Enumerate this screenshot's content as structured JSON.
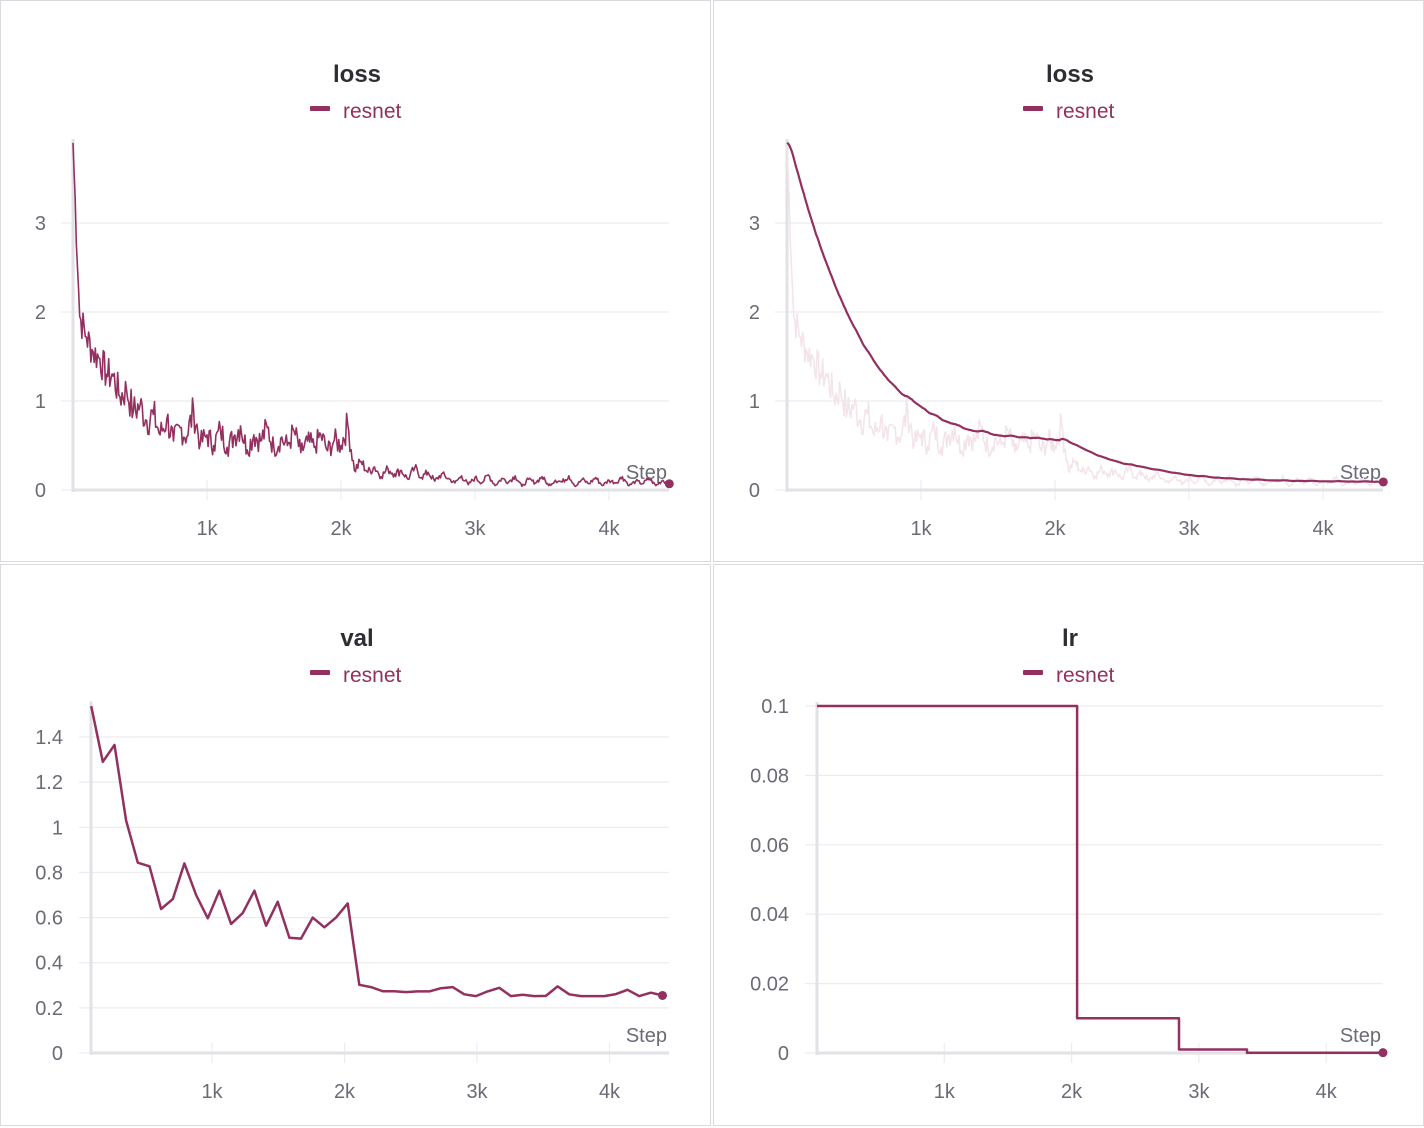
{
  "colors": {
    "series": "#93305f",
    "series_faint": "#f3e4ea"
  },
  "chart_data": [
    {
      "type": "line",
      "title": "loss",
      "legend": [
        {
          "name": "resnet",
          "color": "#93305f"
        }
      ],
      "xlabel": "Step",
      "xticks": [
        1000,
        2000,
        3000,
        4000
      ],
      "xtick_labels": [
        "1k",
        "2k",
        "3k",
        "4k"
      ],
      "yticks": [
        0,
        1,
        2,
        3
      ],
      "ytick_labels": [
        "0",
        "1",
        "2",
        "3"
      ],
      "xlim": [
        0,
        4450
      ],
      "ylim": [
        0,
        3.9
      ],
      "smoothing": false,
      "series": [
        {
          "name": "resnet",
          "x_start": 0,
          "x_step": 50,
          "values": [
            3.9,
            1.95,
            1.72,
            1.55,
            1.48,
            1.3,
            1.28,
            1.05,
            1.12,
            0.88,
            0.95,
            0.78,
            0.85,
            0.62,
            0.8,
            0.55,
            0.7,
            0.6,
            0.9,
            0.52,
            0.62,
            0.5,
            0.68,
            0.48,
            0.6,
            0.72,
            0.45,
            0.62,
            0.55,
            0.7,
            0.46,
            0.58,
            0.5,
            0.66,
            0.42,
            0.55,
            0.48,
            0.62,
            0.44,
            0.56,
            0.5,
            0.74,
            0.22,
            0.32,
            0.2,
            0.26,
            0.15,
            0.24,
            0.18,
            0.22,
            0.12,
            0.25,
            0.14,
            0.2,
            0.1,
            0.18,
            0.13,
            0.08,
            0.16,
            0.06,
            0.14,
            0.08,
            0.17,
            0.05,
            0.13,
            0.09,
            0.16,
            0.04,
            0.12,
            0.08,
            0.15,
            0.05,
            0.11,
            0.09,
            0.16,
            0.04,
            0.12,
            0.07,
            0.14,
            0.05,
            0.11,
            0.08,
            0.15,
            0.05,
            0.1,
            0.07,
            0.13,
            0.05,
            0.11,
            0.07
          ]
        }
      ]
    },
    {
      "type": "line",
      "title": "loss",
      "legend": [
        {
          "name": "resnet",
          "color": "#93305f"
        }
      ],
      "xlabel": "Step",
      "xticks": [
        1000,
        2000,
        3000,
        4000
      ],
      "xtick_labels": [
        "1k",
        "2k",
        "3k",
        "4k"
      ],
      "yticks": [
        0,
        1,
        2,
        3
      ],
      "ytick_labels": [
        "0",
        "1",
        "2",
        "3"
      ],
      "xlim": [
        0,
        4450
      ],
      "ylim": [
        0,
        3.9
      ],
      "smoothing": true,
      "series_ref": 0
    },
    {
      "type": "line",
      "title": "val",
      "legend": [
        {
          "name": "resnet",
          "color": "#93305f"
        }
      ],
      "xlabel": "Step",
      "xticks": [
        1000,
        2000,
        3000,
        4000
      ],
      "xtick_labels": [
        "1k",
        "2k",
        "3k",
        "4k"
      ],
      "yticks": [
        0,
        0.2,
        0.4,
        0.6,
        0.8,
        1,
        1.2,
        1.4
      ],
      "ytick_labels": [
        "0",
        "0.2",
        "0.4",
        "0.6",
        "0.8",
        "1",
        "1.2",
        "1.4"
      ],
      "xlim": [
        0,
        4450
      ],
      "ylim": [
        0,
        1.54
      ],
      "series": [
        {
          "name": "resnet",
          "x_start": 88,
          "x_step": 88,
          "values": [
            1.537,
            1.29,
            1.365,
            1.03,
            0.843,
            0.827,
            0.638,
            0.682,
            0.84,
            0.7,
            0.597,
            0.719,
            0.572,
            0.62,
            0.719,
            0.564,
            0.67,
            0.511,
            0.507,
            0.6,
            0.557,
            0.6,
            0.663,
            0.302,
            0.292,
            0.274,
            0.274,
            0.27,
            0.273,
            0.273,
            0.287,
            0.292,
            0.26,
            0.252,
            0.273,
            0.289,
            0.252,
            0.258,
            0.252,
            0.253,
            0.295,
            0.26,
            0.252,
            0.252,
            0.252,
            0.261,
            0.28,
            0.252,
            0.267,
            0.255
          ]
        }
      ]
    },
    {
      "type": "line",
      "title": "lr",
      "legend": [
        {
          "name": "resnet",
          "color": "#93305f"
        }
      ],
      "xlabel": "Step",
      "xticks": [
        1000,
        2000,
        3000,
        4000
      ],
      "xtick_labels": [
        "1k",
        "2k",
        "3k",
        "4k"
      ],
      "yticks": [
        0,
        0.02,
        0.04,
        0.06,
        0.08,
        0.1
      ],
      "ytick_labels": [
        "0",
        "0.02",
        "0.04",
        "0.06",
        "0.08",
        "0.1"
      ],
      "xlim": [
        0,
        4450
      ],
      "ylim": [
        0,
        0.1
      ],
      "series": [
        {
          "name": "resnet",
          "step_function": true,
          "x": [
            0,
            2043,
            2844,
            3378,
            4446
          ],
          "values": [
            0.1,
            0.01,
            0.001,
            0.0001,
            0.0001
          ]
        }
      ]
    }
  ]
}
